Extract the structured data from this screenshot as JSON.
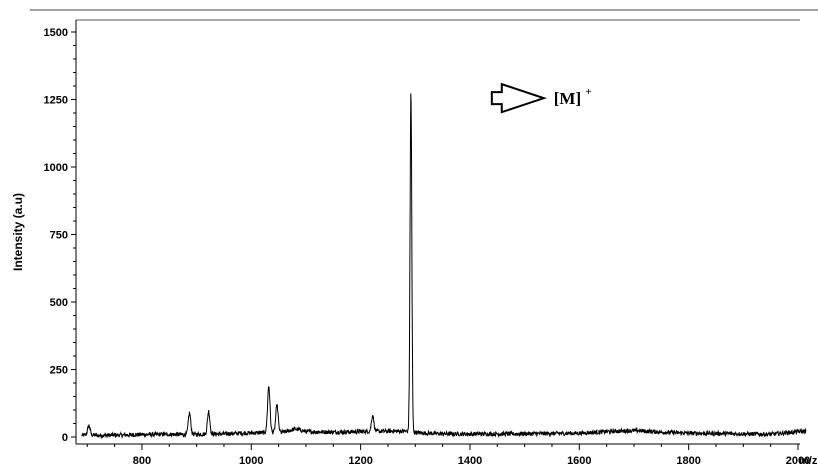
{
  "chart_data": {
    "type": "line",
    "title": "",
    "xlabel": "m/z",
    "ylabel": "Intensity (a.u)",
    "xlim": [
      680,
      2020
    ],
    "ylim": [
      -30,
      1550
    ],
    "x_ticks": [
      800,
      1000,
      1200,
      1400,
      1600,
      1800,
      2000
    ],
    "y_ticks": [
      0,
      250,
      500,
      750,
      1000,
      1250,
      1500
    ],
    "grid": false,
    "baseline": [
      [
        680,
        5
      ],
      [
        700,
        8
      ],
      [
        720,
        6
      ],
      [
        760,
        7
      ],
      [
        800,
        9
      ],
      [
        850,
        10
      ],
      [
        880,
        9
      ],
      [
        900,
        10
      ],
      [
        940,
        11
      ],
      [
        980,
        14
      ],
      [
        1000,
        15
      ],
      [
        1060,
        18
      ],
      [
        1080,
        30
      ],
      [
        1100,
        20
      ],
      [
        1150,
        18
      ],
      [
        1200,
        20
      ],
      [
        1260,
        22
      ],
      [
        1280,
        22
      ],
      [
        1310,
        15
      ],
      [
        1350,
        12
      ],
      [
        1400,
        11
      ],
      [
        1500,
        12
      ],
      [
        1600,
        14
      ],
      [
        1650,
        20
      ],
      [
        1700,
        24
      ],
      [
        1750,
        18
      ],
      [
        1800,
        14
      ],
      [
        1900,
        12
      ],
      [
        1950,
        10
      ],
      [
        2000,
        20
      ],
      [
        2020,
        22
      ]
    ],
    "peaks": [
      {
        "mz": 703,
        "intensity": 35
      },
      {
        "mz": 887,
        "intensity": 80
      },
      {
        "mz": 922,
        "intensity": 85
      },
      {
        "mz": 1032,
        "intensity": 172
      },
      {
        "mz": 1047,
        "intensity": 100
      },
      {
        "mz": 1222,
        "intensity": 60
      },
      {
        "mz": 1292,
        "intensity": 1262
      }
    ],
    "annotation": {
      "text": "[M]",
      "superscript": "+",
      "arrow_from_mz": 1440,
      "arrow_to_mz": 1535,
      "at_intensity": 1255
    }
  }
}
